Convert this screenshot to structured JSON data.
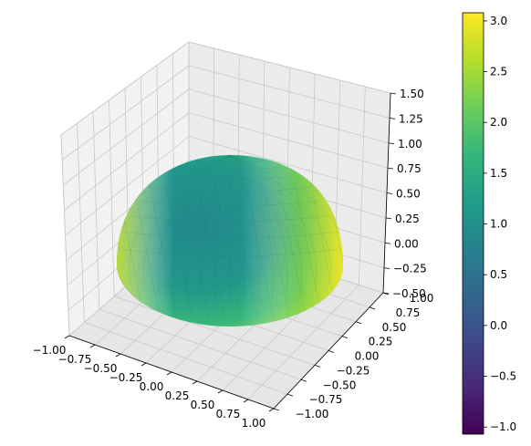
{
  "chart_data": {
    "type": "surface3d",
    "surface": "hemisphere",
    "surface_params": {
      "radius": 1.0,
      "center": [
        0,
        0,
        0
      ],
      "z_min": 0
    },
    "colormap": "viridis",
    "xlim": [
      -1.0,
      1.0
    ],
    "ylim": [
      -1.0,
      1.0
    ],
    "zlim": [
      -0.5,
      1.5
    ],
    "x_ticks": [
      "−1.00",
      "−0.75",
      "−0.50",
      "−0.25",
      "0.00",
      "0.25",
      "0.50",
      "0.75",
      "1.00"
    ],
    "y_ticks": [
      "−1.00",
      "−0.75",
      "−0.50",
      "−0.25",
      "0.00",
      "0.25",
      "0.50",
      "0.75",
      "1.00"
    ],
    "z_ticks": [
      "−0.50",
      "−0.25",
      "0.00",
      "0.25",
      "0.50",
      "0.75",
      "1.00",
      "1.25",
      "1.50"
    ],
    "colorbar": {
      "min": -1.07,
      "max": 3.08,
      "ticks": [
        -1.0,
        -0.5,
        0.0,
        0.5,
        1.0,
        1.5,
        2.0,
        2.5,
        3.0
      ],
      "tick_labels": [
        "−1.0",
        "−0.5",
        "0.0",
        "0.5",
        "1.0",
        "1.5",
        "2.0",
        "2.5",
        "3.0"
      ]
    },
    "grid": true,
    "title": "",
    "xlabel": "",
    "ylabel": "",
    "zlabel": ""
  }
}
